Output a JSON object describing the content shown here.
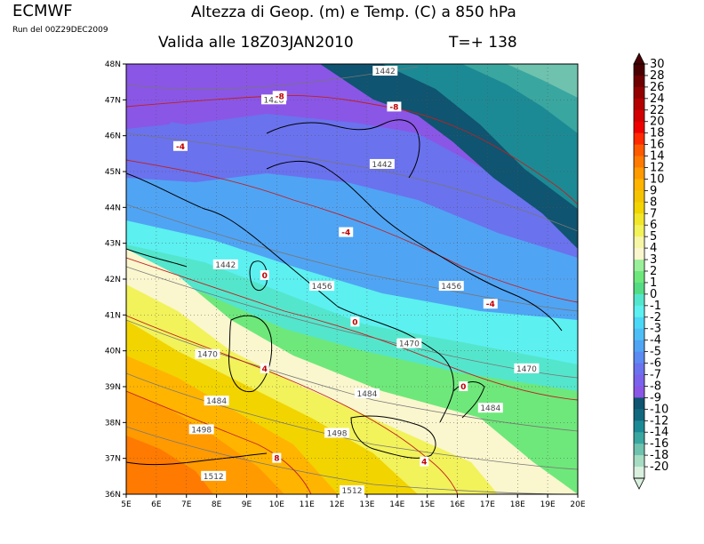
{
  "header": {
    "brand": "ECMWF",
    "run": "Run del 00Z29DEC2009",
    "title": "Altezza di Geop. (m) e Temp. (C) a 850 hPa",
    "valid": "Valida alle 18Z03JAN2010",
    "step": "T=+ 138"
  },
  "map": {
    "lon_labels": [
      "5E",
      "6E",
      "7E",
      "8E",
      "9E",
      "10E",
      "11E",
      "12E",
      "13E",
      "14E",
      "15E",
      "16E",
      "17E",
      "18E",
      "19E",
      "20E"
    ],
    "lat_labels": [
      "48N",
      "47N",
      "46N",
      "45N",
      "44N",
      "43N",
      "42N",
      "41N",
      "40N",
      "39N",
      "38N",
      "37N",
      "36N"
    ],
    "height_labels": [
      {
        "text": "1428",
        "lon": 9.9,
        "lat": 47.0
      },
      {
        "text": "1442",
        "lon": 13.6,
        "lat": 47.8
      },
      {
        "text": "1442",
        "lon": 13.5,
        "lat": 45.2
      },
      {
        "text": "1442",
        "lon": 8.3,
        "lat": 42.4
      },
      {
        "text": "1456",
        "lon": 11.5,
        "lat": 41.8
      },
      {
        "text": "1456",
        "lon": 15.8,
        "lat": 41.8
      },
      {
        "text": "1470",
        "lon": 14.4,
        "lat": 40.2
      },
      {
        "text": "1470",
        "lon": 7.7,
        "lat": 39.9
      },
      {
        "text": "1470",
        "lon": 18.3,
        "lat": 39.5
      },
      {
        "text": "1484",
        "lon": 13.0,
        "lat": 38.8
      },
      {
        "text": "1484",
        "lon": 8.0,
        "lat": 38.6
      },
      {
        "text": "1484",
        "lon": 17.1,
        "lat": 38.4
      },
      {
        "text": "1498",
        "lon": 7.5,
        "lat": 37.8
      },
      {
        "text": "1498",
        "lon": 12.0,
        "lat": 37.7
      },
      {
        "text": "1512",
        "lon": 7.9,
        "lat": 36.5
      },
      {
        "text": "1512",
        "lon": 12.5,
        "lat": 36.1
      }
    ],
    "temp_labels": [
      {
        "text": "-8",
        "lon": 10.1,
        "lat": 47.1
      },
      {
        "text": "-8",
        "lon": 13.9,
        "lat": 46.8
      },
      {
        "text": "-4",
        "lon": 6.8,
        "lat": 45.7
      },
      {
        "text": "-4",
        "lon": 12.3,
        "lat": 43.3
      },
      {
        "text": "-4",
        "lon": 17.1,
        "lat": 41.3
      },
      {
        "text": "0",
        "lon": 9.6,
        "lat": 42.1
      },
      {
        "text": "0",
        "lon": 12.6,
        "lat": 40.8
      },
      {
        "text": "0",
        "lon": 16.2,
        "lat": 39.0
      },
      {
        "text": "4",
        "lon": 9.6,
        "lat": 39.5
      },
      {
        "text": "4",
        "lon": 14.9,
        "lat": 36.9
      },
      {
        "text": "8",
        "lon": 10.0,
        "lat": 37.0
      }
    ]
  },
  "colorbar": {
    "levels": [
      "30",
      "28",
      "26",
      "24",
      "22",
      "20",
      "18",
      "16",
      "14",
      "12",
      "10",
      "9",
      "8",
      "7",
      "6",
      "5",
      "4",
      "3",
      "2",
      "1",
      "0",
      "-1",
      "-2",
      "-3",
      "-4",
      "-5",
      "-6",
      "-7",
      "-8",
      "-9",
      "-10",
      "-12",
      "-14",
      "-16",
      "-18",
      "-20"
    ],
    "colors": [
      "#4a0000",
      "#6e0000",
      "#920000",
      "#b40000",
      "#d20000",
      "#ee0000",
      "#ff2a00",
      "#ff5a00",
      "#ff7a00",
      "#ff9a00",
      "#ffb400",
      "#f5c400",
      "#f2d400",
      "#f2e62a",
      "#f2f25a",
      "#f6f6a6",
      "#faf6ce",
      "#9af09a",
      "#6ee87a",
      "#54dc84",
      "#54e6cc",
      "#5cf0f0",
      "#4ad8f6",
      "#4ebef6",
      "#50a4f4",
      "#5a8af2",
      "#6a72ee",
      "#7a62ec",
      "#8a56e6",
      "#0f5470",
      "#11697f",
      "#1c8a94",
      "#3aa6a0",
      "#6ec2ae",
      "#a6dcc2",
      "#d9f0de"
    ]
  }
}
